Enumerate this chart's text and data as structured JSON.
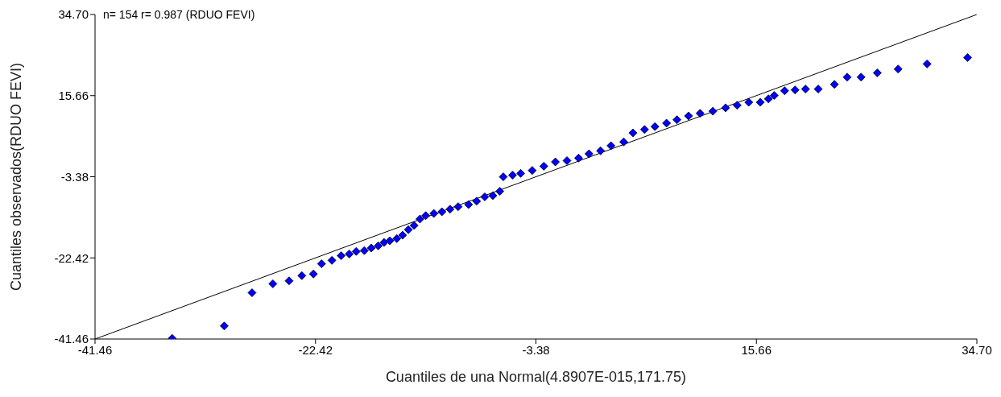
{
  "chart_data": {
    "type": "scatter",
    "title": "n= 154 r= 0.987 (RDUO FEVI)",
    "xlabel": "Cuantiles de una Normal(4.8907E-015,171.75)",
    "ylabel": "Cuantiles observados(RDUO FEVI)",
    "xlim": [
      -41.46,
      34.7
    ],
    "ylim": [
      -41.46,
      34.7
    ],
    "xticks": [
      -41.46,
      -22.42,
      -3.38,
      15.66,
      {
        "value": 34.7,
        "label": "34.70"
      }
    ],
    "yticks": [
      -41.46,
      -22.42,
      -3.38,
      15.66,
      {
        "value": 34.7,
        "label": "34.70"
      }
    ],
    "grid": false,
    "legend": false,
    "series": [
      {
        "color": "#0000ff",
        "marker": "diamond",
        "x": [
          -34.8,
          -30.3,
          -27.9,
          -26.1,
          -24.7,
          -23.6,
          -22.6,
          -21.9,
          -21.0,
          -20.2,
          -19.5,
          -18.9,
          -18.2,
          -17.6,
          -17.0,
          -16.5,
          -16.0,
          -15.4,
          -14.9,
          -14.4,
          -13.9,
          -13.4,
          -12.9,
          -12.2,
          -11.5,
          -10.8,
          -10.1,
          -9.2,
          -8.5,
          -7.8,
          -7.1,
          -6.5,
          -6.2,
          -5.4,
          -4.7,
          -3.7,
          -2.7,
          -1.7,
          -0.7,
          0.3,
          1.2,
          2.2,
          3.1,
          4.2,
          5.0,
          6.0,
          6.9,
          7.9,
          8.8,
          9.8,
          10.8,
          11.9,
          13.0,
          14.0,
          15.0,
          16.0,
          16.7,
          17.2,
          18.1,
          19.0,
          19.9,
          21.0,
          22.4,
          23.5,
          24.7,
          26.1,
          27.9,
          30.4,
          33.9
        ],
        "values": [
          -41.3,
          -38.4,
          -30.6,
          -28.5,
          -27.8,
          -26.6,
          -26.2,
          -23.8,
          -23.0,
          -21.9,
          -21.5,
          -20.9,
          -20.7,
          -20.1,
          -19.6,
          -18.8,
          -18.4,
          -17.9,
          -17.1,
          -15.8,
          -14.8,
          -13.3,
          -12.5,
          -12.0,
          -11.6,
          -11.0,
          -10.4,
          -9.9,
          -9.1,
          -8.1,
          -7.8,
          -6.8,
          -3.4,
          -3.0,
          -2.6,
          -1.9,
          -0.9,
          0.1,
          0.4,
          1.0,
          2.0,
          2.7,
          3.9,
          4.8,
          6.9,
          7.7,
          8.4,
          9.2,
          10.0,
          10.9,
          11.5,
          12.0,
          12.8,
          13.4,
          14.1,
          14.1,
          14.9,
          15.7,
          16.8,
          17.0,
          17.2,
          17.2,
          18.3,
          20.0,
          20.0,
          21.0,
          21.9,
          23.1,
          24.6
        ]
      },
      {
        "type": "line",
        "color": "#000000",
        "marker": "none",
        "x": [
          -41.46,
          34.7
        ],
        "values": [
          -41.46,
          34.7
        ]
      }
    ]
  }
}
